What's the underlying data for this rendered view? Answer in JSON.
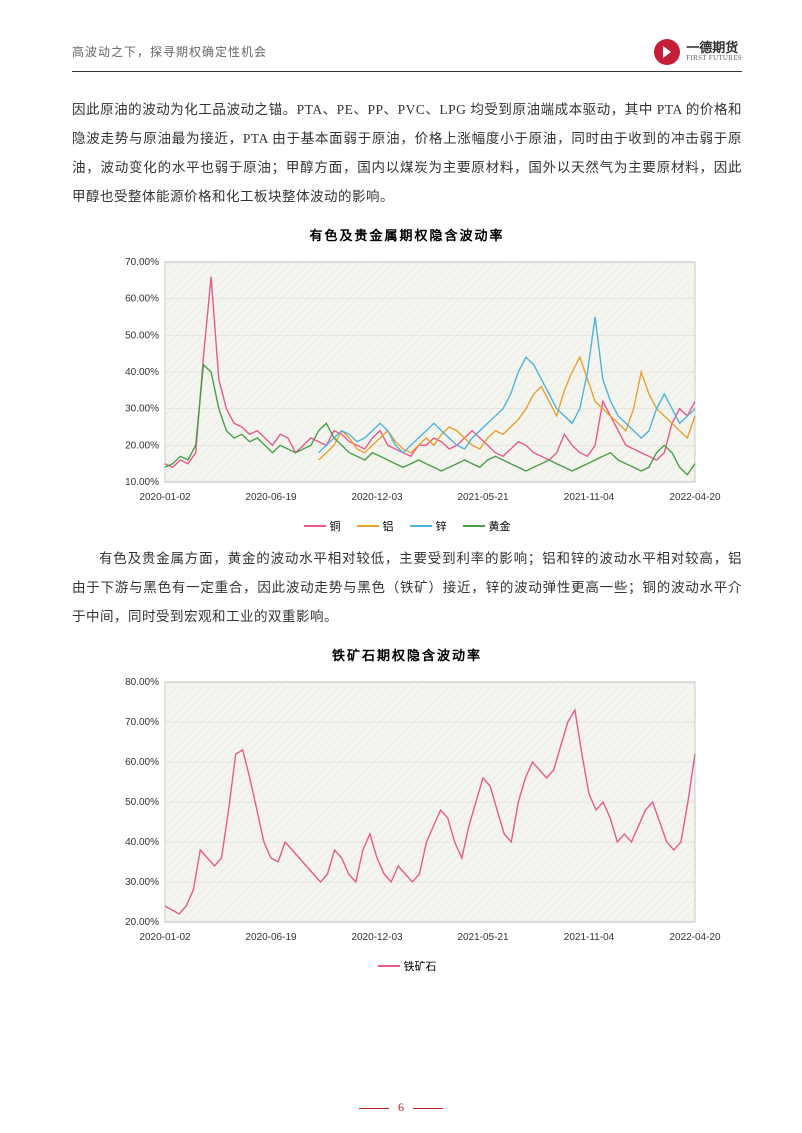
{
  "header": {
    "title": "高波动之下，探寻期权确定性机会",
    "logo_cn": "一德期货",
    "logo_en": "FIRST FUTURES"
  },
  "paragraphs": {
    "p1": "因此原油的波动为化工品波动之锚。PTA、PE、PP、PVC、LPG 均受到原油端成本驱动，其中 PTA 的价格和隐波走势与原油最为接近，PTA 由于基本面弱于原油，价格上涨幅度小于原油，同时由于收到的冲击弱于原油，波动变化的水平也弱于原油；甲醇方面，国内以煤炭为主要原材料，国外以天然气为主要原材料，因此甲醇也受整体能源价格和化工板块整体波动的影响。",
    "p2": "有色及贵金属方面，黄金的波动水平相对较低，主要受到利率的影响；铝和锌的波动水平相对较高，铝由于下游与黑色有一定重合，因此波动走势与黑色（铁矿）接近，锌的波动弹性更高一些；铜的波动水平介于中间，同时受到宏观和工业的双重影响。"
  },
  "chart1": {
    "title": "有色及贵金属期权隐含波动率",
    "type": "line",
    "x_labels": [
      "2020-01-02",
      "2020-06-19",
      "2020-12-03",
      "2021-05-21",
      "2021-11-04",
      "2022-04-20"
    ],
    "y_ticks": [
      "10.00%",
      "20.00%",
      "30.00%",
      "40.00%",
      "50.00%",
      "60.00%",
      "70.00%"
    ],
    "ylim": [
      10,
      70
    ],
    "plot_bg": "#f5f5f0",
    "grid_color": "#d8d8d0",
    "axis_fontsize": 10,
    "series": [
      {
        "name": "铜",
        "color": "#e85a8a",
        "data": [
          15,
          14,
          16,
          15,
          18,
          44,
          66,
          38,
          30,
          26,
          25,
          23,
          24,
          22,
          20,
          23,
          22,
          18,
          20,
          22,
          21,
          20,
          24,
          23,
          21,
          20,
          19,
          22,
          24,
          20,
          19,
          18,
          17,
          20,
          20,
          22,
          21,
          19,
          20,
          22,
          24,
          22,
          20,
          18,
          17,
          19,
          21,
          20,
          18,
          17,
          16,
          18,
          23,
          20,
          18,
          17,
          20,
          32,
          28,
          24,
          20,
          19,
          18,
          17,
          16,
          18,
          26,
          30,
          28,
          32
        ]
      },
      {
        "name": "铝",
        "color": "#e8a030",
        "data": [
          null,
          null,
          null,
          null,
          null,
          null,
          null,
          null,
          null,
          null,
          null,
          null,
          null,
          null,
          null,
          null,
          null,
          null,
          null,
          null,
          16,
          18,
          20,
          24,
          22,
          19,
          18,
          20,
          22,
          24,
          21,
          19,
          18,
          20,
          22,
          20,
          23,
          25,
          24,
          22,
          20,
          19,
          22,
          24,
          23,
          25,
          27,
          30,
          34,
          36,
          32,
          28,
          35,
          40,
          44,
          38,
          32,
          30,
          28,
          26,
          24,
          30,
          40,
          34,
          30,
          28,
          26,
          24,
          22,
          28
        ]
      },
      {
        "name": "锌",
        "color": "#4fb3d9",
        "data": [
          null,
          null,
          null,
          null,
          null,
          null,
          null,
          null,
          null,
          null,
          null,
          null,
          null,
          null,
          null,
          null,
          null,
          null,
          null,
          null,
          18,
          20,
          22,
          24,
          23,
          21,
          22,
          24,
          26,
          24,
          20,
          18,
          20,
          22,
          24,
          26,
          24,
          22,
          20,
          19,
          22,
          24,
          26,
          28,
          30,
          34,
          40,
          44,
          42,
          38,
          34,
          30,
          28,
          26,
          30,
          40,
          55,
          38,
          32,
          28,
          26,
          24,
          22,
          24,
          30,
          34,
          30,
          26,
          28,
          30
        ]
      },
      {
        "name": "黄金",
        "color": "#4a9d4a",
        "data": [
          14,
          15,
          17,
          16,
          20,
          42,
          40,
          30,
          24,
          22,
          23,
          21,
          22,
          20,
          18,
          20,
          19,
          18,
          19,
          20,
          24,
          26,
          22,
          20,
          18,
          17,
          16,
          18,
          17,
          16,
          15,
          14,
          15,
          16,
          15,
          14,
          13,
          14,
          15,
          16,
          15,
          14,
          16,
          17,
          16,
          15,
          14,
          13,
          14,
          15,
          16,
          15,
          14,
          13,
          14,
          15,
          16,
          17,
          18,
          16,
          15,
          14,
          13,
          14,
          18,
          20,
          18,
          14,
          12,
          15
        ]
      }
    ]
  },
  "chart2": {
    "title": "铁矿石期权隐含波动率",
    "type": "line",
    "x_labels": [
      "2020-01-02",
      "2020-06-19",
      "2020-12-03",
      "2021-05-21",
      "2021-11-04",
      "2022-04-20"
    ],
    "y_ticks": [
      "20.00%",
      "30.00%",
      "40.00%",
      "50.00%",
      "60.00%",
      "70.00%",
      "80.00%"
    ],
    "ylim": [
      20,
      80
    ],
    "plot_bg": "#f5f5f0",
    "grid_color": "#d8d8d0",
    "axis_fontsize": 10,
    "series": [
      {
        "name": "铁矿石",
        "color": "#e85a8a",
        "data": [
          24,
          23,
          22,
          24,
          28,
          38,
          36,
          34,
          36,
          48,
          62,
          63,
          56,
          48,
          40,
          36,
          35,
          40,
          38,
          36,
          34,
          32,
          30,
          32,
          38,
          36,
          32,
          30,
          38,
          42,
          36,
          32,
          30,
          34,
          32,
          30,
          32,
          40,
          44,
          48,
          46,
          40,
          36,
          44,
          50,
          56,
          54,
          48,
          42,
          40,
          50,
          56,
          60,
          58,
          56,
          58,
          64,
          70,
          73,
          62,
          52,
          48,
          50,
          46,
          40,
          42,
          40,
          44,
          48,
          50,
          45,
          40,
          38,
          40,
          50,
          62
        ]
      }
    ]
  },
  "footer": {
    "page": "6"
  }
}
